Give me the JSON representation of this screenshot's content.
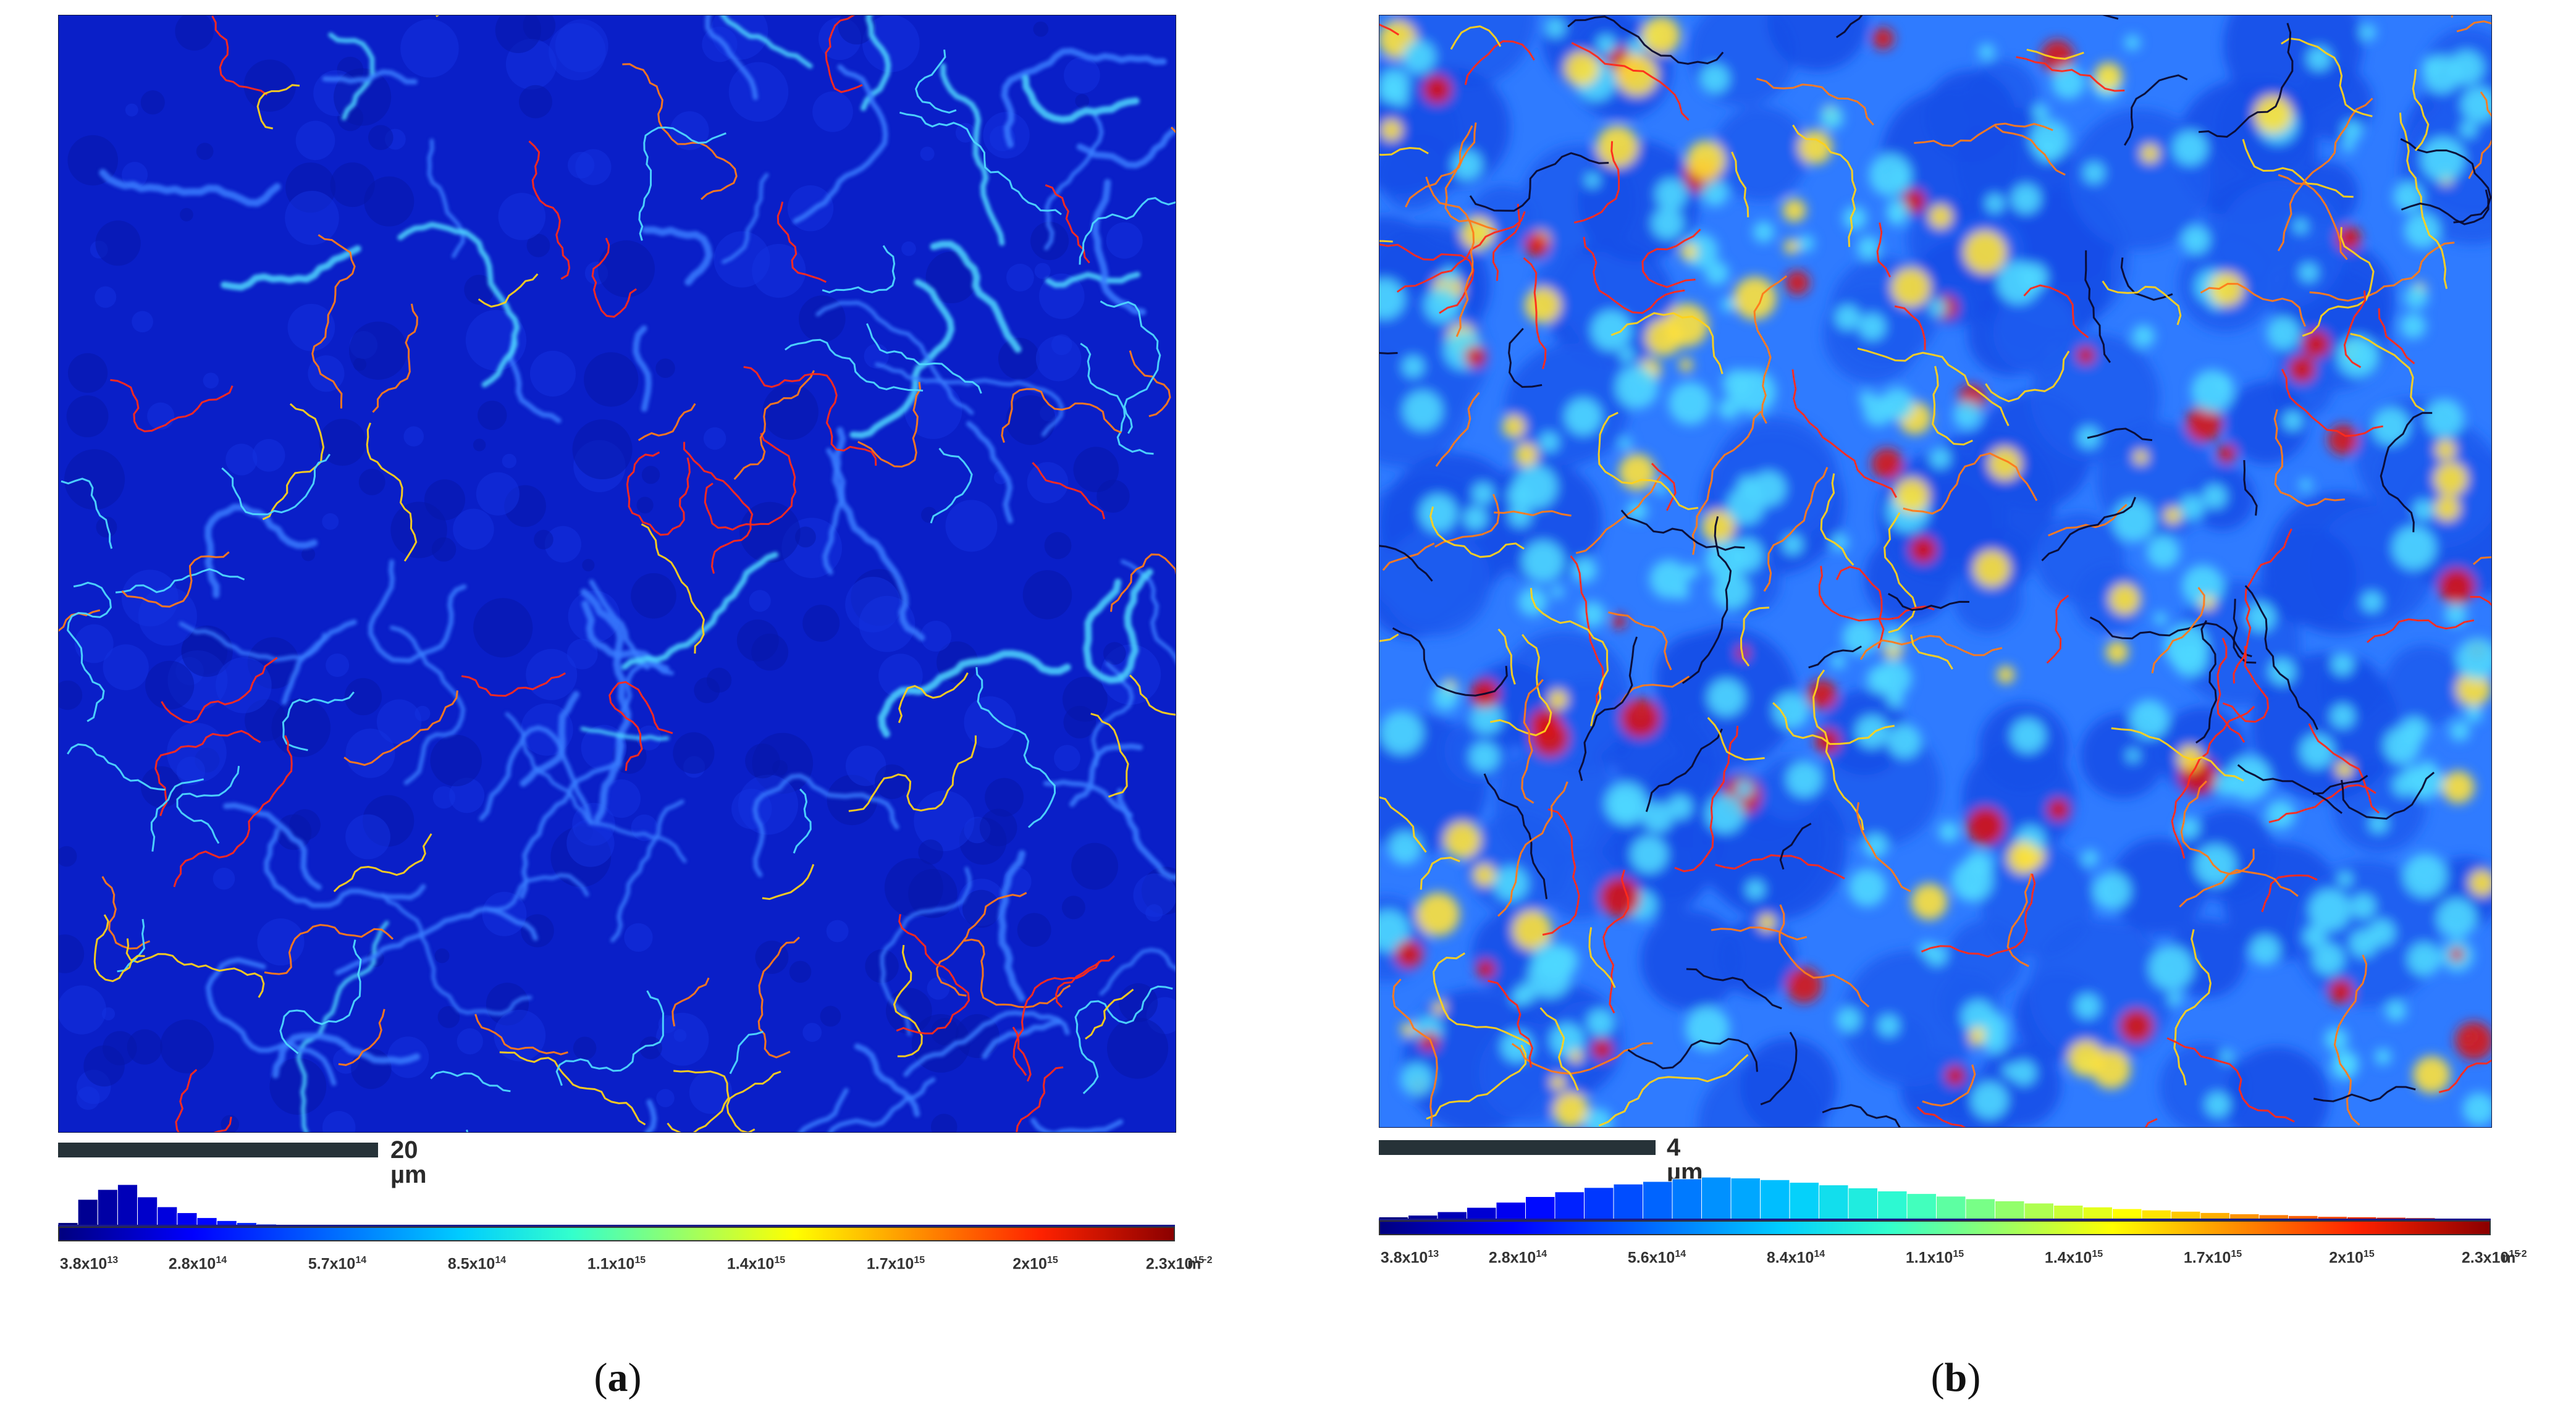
{
  "panels": [
    {
      "id": "a",
      "label_open": "(",
      "label_letter": "a",
      "label_close": ")",
      "scale_bar": "20 µm",
      "colorbar_ticks": [
        {
          "m": "3.8x10",
          "e": "13"
        },
        {
          "m": "2.8x10",
          "e": "14"
        },
        {
          "m": "5.7x10",
          "e": "14"
        },
        {
          "m": "8.5x10",
          "e": "14"
        },
        {
          "m": "1.1x10",
          "e": "15"
        },
        {
          "m": "1.4x10",
          "e": "15"
        },
        {
          "m": "1.7x10",
          "e": "15"
        },
        {
          "m": "2x10",
          "e": "15"
        },
        {
          "m": "2.3x10",
          "e": "15"
        }
      ],
      "unit_base": "m",
      "unit_exp": "−2",
      "histogram_fraction": [
        0.08,
        0.55,
        0.75,
        0.85,
        0.6,
        0.4,
        0.28,
        0.18,
        0.12,
        0.08,
        0.05,
        0.04,
        0.03,
        0.02,
        0.02,
        0.015,
        0.01,
        0.01
      ],
      "map_palette": "dark-blue"
    },
    {
      "id": "b",
      "label_open": "(",
      "label_letter": "b",
      "label_close": ")",
      "scale_bar": "4 µm",
      "colorbar_ticks": [
        {
          "m": "3.8x10",
          "e": "13"
        },
        {
          "m": "2.8x10",
          "e": "14"
        },
        {
          "m": "5.6x10",
          "e": "14"
        },
        {
          "m": "8.4x10",
          "e": "14"
        },
        {
          "m": "1.1x10",
          "e": "15"
        },
        {
          "m": "1.4x10",
          "e": "15"
        },
        {
          "m": "1.7x10",
          "e": "15"
        },
        {
          "m": "2x10",
          "e": "15"
        },
        {
          "m": "2.3x10",
          "e": "15"
        }
      ],
      "unit_base": "m",
      "unit_exp": "−2",
      "histogram_fraction": [
        0.08,
        0.12,
        0.2,
        0.3,
        0.42,
        0.55,
        0.66,
        0.76,
        0.84,
        0.9,
        0.96,
        1.0,
        0.98,
        0.94,
        0.88,
        0.82,
        0.75,
        0.68,
        0.62,
        0.56,
        0.5,
        0.45,
        0.4,
        0.35,
        0.31,
        0.27,
        0.24,
        0.21,
        0.18,
        0.15,
        0.13,
        0.11,
        0.09,
        0.08,
        0.07,
        0.06
      ],
      "map_palette": "bright-blue"
    }
  ],
  "colors": {
    "map_a_base": "#0a1fc8",
    "map_b_base": "#2f7bff",
    "boundary_red": "#ff2a1a",
    "boundary_yellow": "#ffd21a",
    "boundary_black": "#0a0a30",
    "hotspot_cyan": "#4fd8ff",
    "hotspot_yellow": "#ffe23a",
    "hotspot_red": "#d81414"
  }
}
